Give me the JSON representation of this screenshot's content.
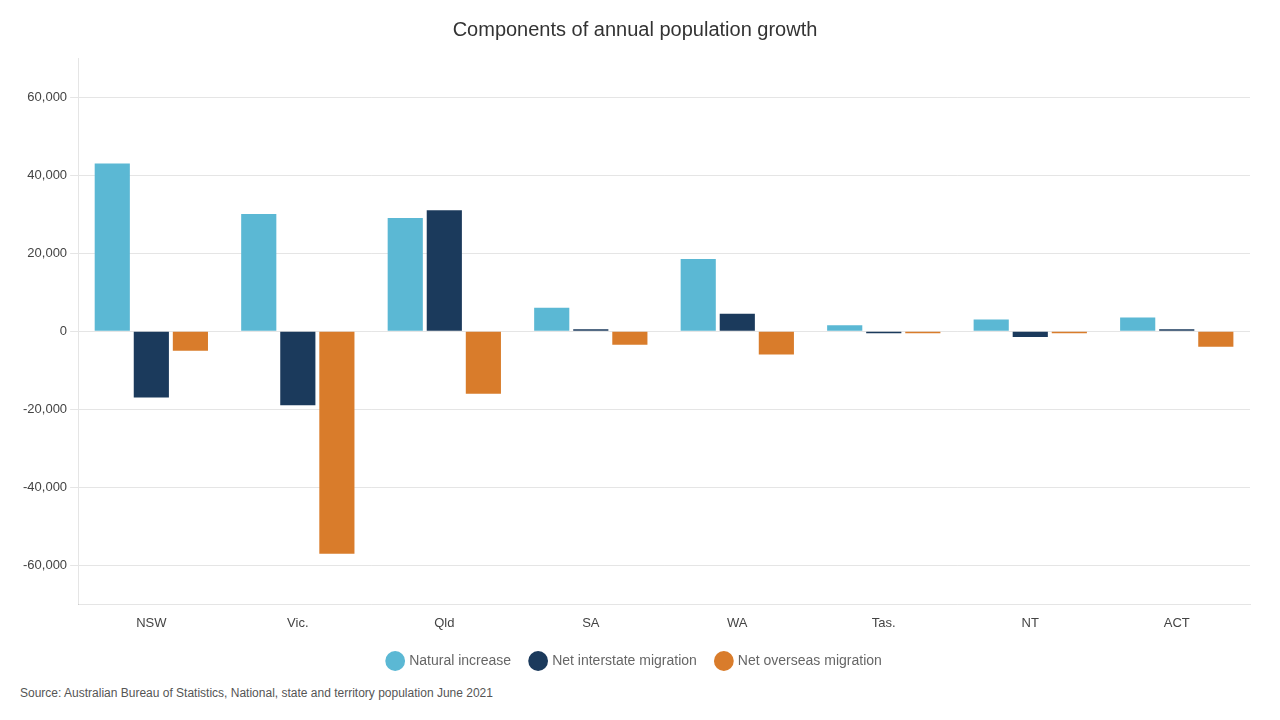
{
  "chart_data": {
    "type": "bar",
    "title": "Components of annual population growth",
    "categories": [
      "NSW",
      "Vic.",
      "Qld",
      "SA",
      "WA",
      "Tas.",
      "NT",
      "ACT"
    ],
    "series": [
      {
        "name": "Natural increase",
        "color": "#5BB8D4",
        "values": [
          43000,
          30000,
          29000,
          6000,
          18500,
          1500,
          3000,
          3500
        ]
      },
      {
        "name": "Net interstate migration",
        "color": "#1B3A5C",
        "values": [
          -17000,
          -19000,
          31000,
          500,
          4500,
          -500,
          -1500,
          500
        ]
      },
      {
        "name": "Net overseas migration",
        "color": "#D97C2B",
        "values": [
          -5000,
          -57000,
          -16000,
          -3500,
          -6000,
          -500,
          -500,
          -4000
        ]
      }
    ],
    "ylim": [
      -70000,
      70000
    ],
    "yticks": [
      {
        "value": -60000,
        "label": "-60,000"
      },
      {
        "value": -40000,
        "label": "-40,000"
      },
      {
        "value": -20000,
        "label": "-20,000"
      },
      0,
      {
        "value": 20000,
        "label": "20,000"
      },
      {
        "value": 40000,
        "label": "40,000"
      },
      {
        "value": 60000,
        "label": "60,000"
      }
    ],
    "grid": true,
    "legend": "bottom",
    "annotations": [
      "Source: Australian Bureau of Statistics, National, state and territory population June 2021"
    ]
  }
}
